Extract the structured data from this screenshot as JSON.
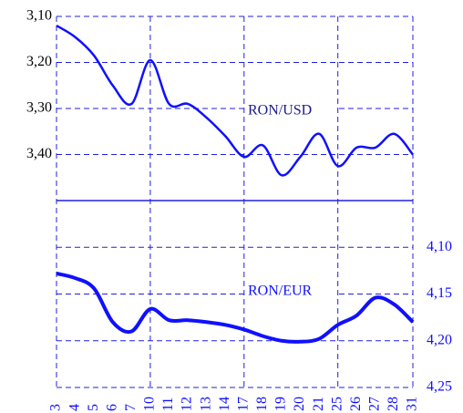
{
  "chart_data": {
    "type": "line",
    "categories": [
      "3",
      "4",
      "5",
      "6",
      "7",
      "10",
      "11",
      "12",
      "13",
      "14",
      "17",
      "18",
      "19",
      "20",
      "21",
      "25",
      "26",
      "27",
      "28",
      "31"
    ],
    "series": [
      {
        "name": "RON/USD",
        "color": "#1010ff",
        "axis": "y",
        "values": [
          3.12,
          3.145,
          3.185,
          3.25,
          3.29,
          3.195,
          3.29,
          3.29,
          3.32,
          3.36,
          3.405,
          3.38,
          3.445,
          3.405,
          3.355,
          3.425,
          3.385,
          3.385,
          3.355,
          3.4
        ]
      },
      {
        "name": "RON/EUR",
        "color": "#1010ff",
        "axis": "y2",
        "values": [
          4.128,
          4.133,
          4.144,
          4.18,
          4.19,
          4.166,
          4.178,
          4.178,
          4.18,
          4.183,
          4.188,
          4.195,
          4.2,
          4.201,
          4.198,
          4.183,
          4.173,
          4.154,
          4.161,
          4.18
        ]
      }
    ],
    "ylim": [
      3.1,
      3.5
    ],
    "inverted": true,
    "yticks": [
      {
        "value": 3.1,
        "label": "3,10"
      },
      {
        "value": 3.2,
        "label": "3,20"
      },
      {
        "value": 3.3,
        "label": "3,30"
      },
      {
        "value": 3.4,
        "label": "3,40"
      }
    ],
    "y2lim": [
      4.05,
      4.25
    ],
    "y2ticks": [
      {
        "value": 4.1,
        "label": "4,10"
      },
      {
        "value": 4.15,
        "label": "4,15"
      },
      {
        "value": 4.2,
        "label": "4,20"
      },
      {
        "value": 4.25,
        "label": "4,25"
      }
    ],
    "grid": true
  }
}
